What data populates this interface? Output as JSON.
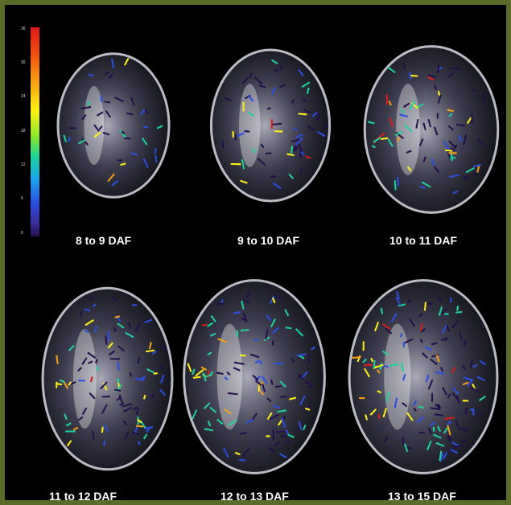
{
  "figure": {
    "panels": [
      {
        "label": "8 to 9 DAF"
      },
      {
        "label": "9 to 10 DAF"
      },
      {
        "label": "10 to 11 DAF"
      },
      {
        "label": "11 to 12 DAF"
      },
      {
        "label": "12 to 13 DAF"
      },
      {
        "label": "13 to 15 DAF"
      }
    ],
    "colorbar": {
      "tick_labels": [
        "36",
        "30",
        "24",
        "18",
        "12",
        "6",
        "0"
      ],
      "colors": [
        "#e01818",
        "#f7a012",
        "#fff214",
        "#1cd49a",
        "#2a4fe0",
        "#22104a"
      ]
    },
    "frame_color": "#5a6b2a",
    "background": "#000000"
  }
}
